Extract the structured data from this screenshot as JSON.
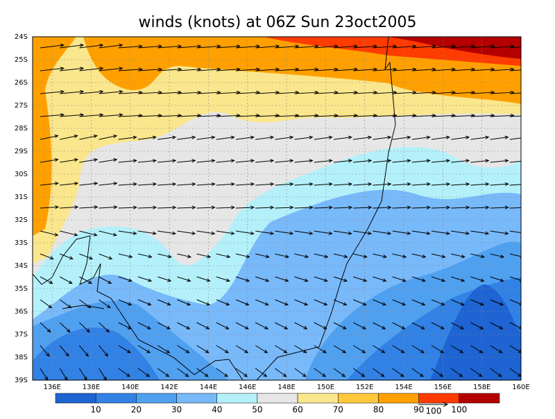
{
  "title": "winds (knots) at 06Z Sun 23oct2005",
  "map": {
    "xlim": [
      135,
      160
    ],
    "xticks": [
      {
        "value": 136,
        "label": "136E"
      },
      {
        "value": 138,
        "label": "138E"
      },
      {
        "value": 140,
        "label": "140E"
      },
      {
        "value": 142,
        "label": "142E"
      },
      {
        "value": 144,
        "label": "144E"
      },
      {
        "value": 146,
        "label": "146E"
      },
      {
        "value": 148,
        "label": "148E"
      },
      {
        "value": 150,
        "label": "150E"
      },
      {
        "value": 152,
        "label": "152E"
      },
      {
        "value": 154,
        "label": "154E"
      },
      {
        "value": 156,
        "label": "156E"
      },
      {
        "value": 158,
        "label": "158E"
      },
      {
        "value": 160,
        "label": "160E"
      }
    ],
    "ylim": [
      24,
      39
    ],
    "yticks": [
      {
        "value": 24,
        "label": "24S"
      },
      {
        "value": 25,
        "label": "25S"
      },
      {
        "value": 26,
        "label": "26S"
      },
      {
        "value": 27,
        "label": "27S"
      },
      {
        "value": 28,
        "label": "28S"
      },
      {
        "value": 29,
        "label": "29S"
      },
      {
        "value": 30,
        "label": "30S"
      },
      {
        "value": 31,
        "label": "31S"
      },
      {
        "value": 32,
        "label": "32S"
      },
      {
        "value": 33,
        "label": "33S"
      },
      {
        "value": 34,
        "label": "34S"
      },
      {
        "value": 35,
        "label": "35S"
      },
      {
        "value": 36,
        "label": "36S"
      },
      {
        "value": 37,
        "label": "37S"
      },
      {
        "value": 38,
        "label": "38S"
      },
      {
        "value": 39,
        "label": "39S"
      }
    ]
  },
  "colorbar": {
    "levels": [
      10,
      20,
      30,
      40,
      50,
      60,
      70,
      80,
      90,
      100
    ],
    "colors": [
      "#1e64d2",
      "#3282e6",
      "#50a0f0",
      "#78b9fa",
      "#b4f0fa",
      "#e6e6e6",
      "#fae68c",
      "#ffc83c",
      "#ffa000",
      "#ff3c00",
      "#b40000"
    ]
  },
  "reference_vector": {
    "label": "100"
  }
}
